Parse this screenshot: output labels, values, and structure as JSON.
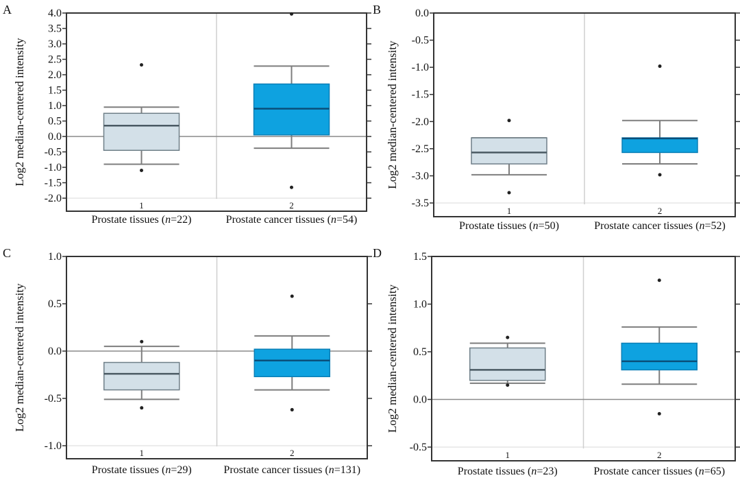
{
  "figure": {
    "colors": {
      "normal_fill": "#d3e0e8",
      "normal_stroke": "#6f7f88",
      "normal_median": "#4a5a63",
      "cancer_fill": "#0ea2e0",
      "cancer_stroke": "#0b7fb6",
      "cancer_median": "#0a4f7a",
      "whisker": "#7d7d7d",
      "frame": "#333333",
      "grid": "#e6e6e6",
      "zero_line": "#8a8a8a",
      "outlier": "#222222"
    }
  },
  "chart_data": [
    {
      "panel": "A",
      "type": "box",
      "title": "",
      "xlabel": "",
      "ylabel": "Log2 median-centered intensity",
      "ylim": [
        -2.0,
        4.0
      ],
      "yticks": [
        "4.0",
        "3.5",
        "3.0",
        "2.5",
        "2.0",
        "1.5",
        "1.0",
        "0.5",
        "0.0",
        "-0.5",
        "-1.0",
        "-1.5",
        "-2.0"
      ],
      "ytick_values": [
        4.0,
        3.5,
        3.0,
        2.5,
        2.0,
        1.5,
        1.0,
        0.5,
        0.0,
        -0.5,
        -1.0,
        -1.5,
        -2.0
      ],
      "grid": false,
      "reference_line": 0.0,
      "categories": [
        "1",
        "2"
      ],
      "category_labels": [
        {
          "prefix": "Prostate tissues (",
          "n_symbol": "n",
          "suffix": "=22)"
        },
        {
          "prefix": "Prostate cancer tissues (",
          "n_symbol": "n",
          "suffix": "=54)"
        }
      ],
      "series": [
        {
          "name": "Prostate tissues",
          "n": 22,
          "whisker_high": 0.95,
          "q3": 0.75,
          "median": 0.35,
          "q1": -0.45,
          "whisker_low": -0.9,
          "outliers": [
            2.32,
            -1.1
          ]
        },
        {
          "name": "Prostate cancer tissues",
          "n": 54,
          "whisker_high": 2.28,
          "q3": 1.7,
          "median": 0.9,
          "q1": 0.05,
          "whisker_low": -0.38,
          "outliers": [
            3.97,
            -1.65
          ]
        }
      ]
    },
    {
      "panel": "B",
      "type": "box",
      "title": "",
      "xlabel": "",
      "ylabel": "Log2 median-centered intensity",
      "ylim": [
        -3.5,
        0.0
      ],
      "yticks": [
        "0.0",
        "-0.5",
        "-1.0",
        "-1.5",
        "-2.0",
        "-2.5",
        "-3.0",
        "-3.5"
      ],
      "ytick_values": [
        0.0,
        -0.5,
        -1.0,
        -1.5,
        -2.0,
        -2.5,
        -3.0,
        -3.5
      ],
      "grid": false,
      "reference_line": null,
      "categories": [
        "1",
        "2"
      ],
      "category_labels": [
        {
          "prefix": "Prostate tissues (",
          "n_symbol": "n",
          "suffix": "=50)"
        },
        {
          "prefix": "Prostate cancer tissues (",
          "n_symbol": "n",
          "suffix": "=52)"
        }
      ],
      "series": [
        {
          "name": "Prostate tissues",
          "n": 50,
          "whisker_high": -2.3,
          "q3": -2.3,
          "median": -2.57,
          "q1": -2.78,
          "whisker_low": -2.98,
          "outliers": [
            -1.98,
            -3.31
          ]
        },
        {
          "name": "Prostate cancer tissues",
          "n": 52,
          "whisker_high": -1.98,
          "q3": -2.3,
          "median": -2.31,
          "q1": -2.57,
          "whisker_low": -2.78,
          "outliers": [
            -0.98,
            -2.98
          ]
        }
      ]
    },
    {
      "panel": "C",
      "type": "box",
      "title": "",
      "xlabel": "",
      "ylabel": "Log2 median-centered intensity",
      "ylim": [
        -1.0,
        1.0
      ],
      "yticks": [
        "1.0",
        "0.5",
        "0.0",
        "-0.5",
        "-1.0"
      ],
      "ytick_values": [
        1.0,
        0.5,
        0.0,
        -0.5,
        -1.0
      ],
      "grid": false,
      "reference_line": 0.0,
      "categories": [
        "1",
        "2"
      ],
      "category_labels": [
        {
          "prefix": "Prostate tissues (",
          "n_symbol": "n",
          "suffix": "=29)"
        },
        {
          "prefix": "Prostate cancer tissues (",
          "n_symbol": "n",
          "suffix": "=131)"
        }
      ],
      "series": [
        {
          "name": "Prostate tissues",
          "n": 29,
          "whisker_high": 0.05,
          "q3": -0.12,
          "median": -0.24,
          "q1": -0.41,
          "whisker_low": -0.51,
          "outliers": [
            0.1,
            -0.6
          ]
        },
        {
          "name": "Prostate cancer tissues",
          "n": 131,
          "whisker_high": 0.16,
          "q3": 0.02,
          "median": -0.1,
          "q1": -0.27,
          "whisker_low": -0.41,
          "outliers": [
            0.58,
            -0.62
          ]
        }
      ]
    },
    {
      "panel": "D",
      "type": "box",
      "title": "",
      "xlabel": "",
      "ylabel": "Log2 median-centered intensity",
      "ylim": [
        -0.5,
        1.5
      ],
      "yticks": [
        "1.5",
        "1.0",
        "0.5",
        "0.0",
        "-0.5"
      ],
      "ytick_values": [
        1.5,
        1.0,
        0.5,
        0.0,
        -0.5
      ],
      "grid": false,
      "reference_line": 0.0,
      "categories": [
        "1",
        "2"
      ],
      "category_labels": [
        {
          "prefix": "Prostate tissues (",
          "n_symbol": "n",
          "suffix": "=23)"
        },
        {
          "prefix": "Prostate cancer tissues (",
          "n_symbol": "n",
          "suffix": "=65)"
        }
      ],
      "series": [
        {
          "name": "Prostate tissues",
          "n": 23,
          "whisker_high": 0.59,
          "q3": 0.54,
          "median": 0.31,
          "q1": 0.2,
          "whisker_low": 0.17,
          "outliers": [
            0.65,
            0.15
          ]
        },
        {
          "name": "Prostate cancer tissues",
          "n": 65,
          "whisker_high": 0.76,
          "q3": 0.59,
          "median": 0.4,
          "q1": 0.31,
          "whisker_low": 0.16,
          "outliers": [
            1.25,
            -0.15
          ]
        }
      ]
    }
  ]
}
